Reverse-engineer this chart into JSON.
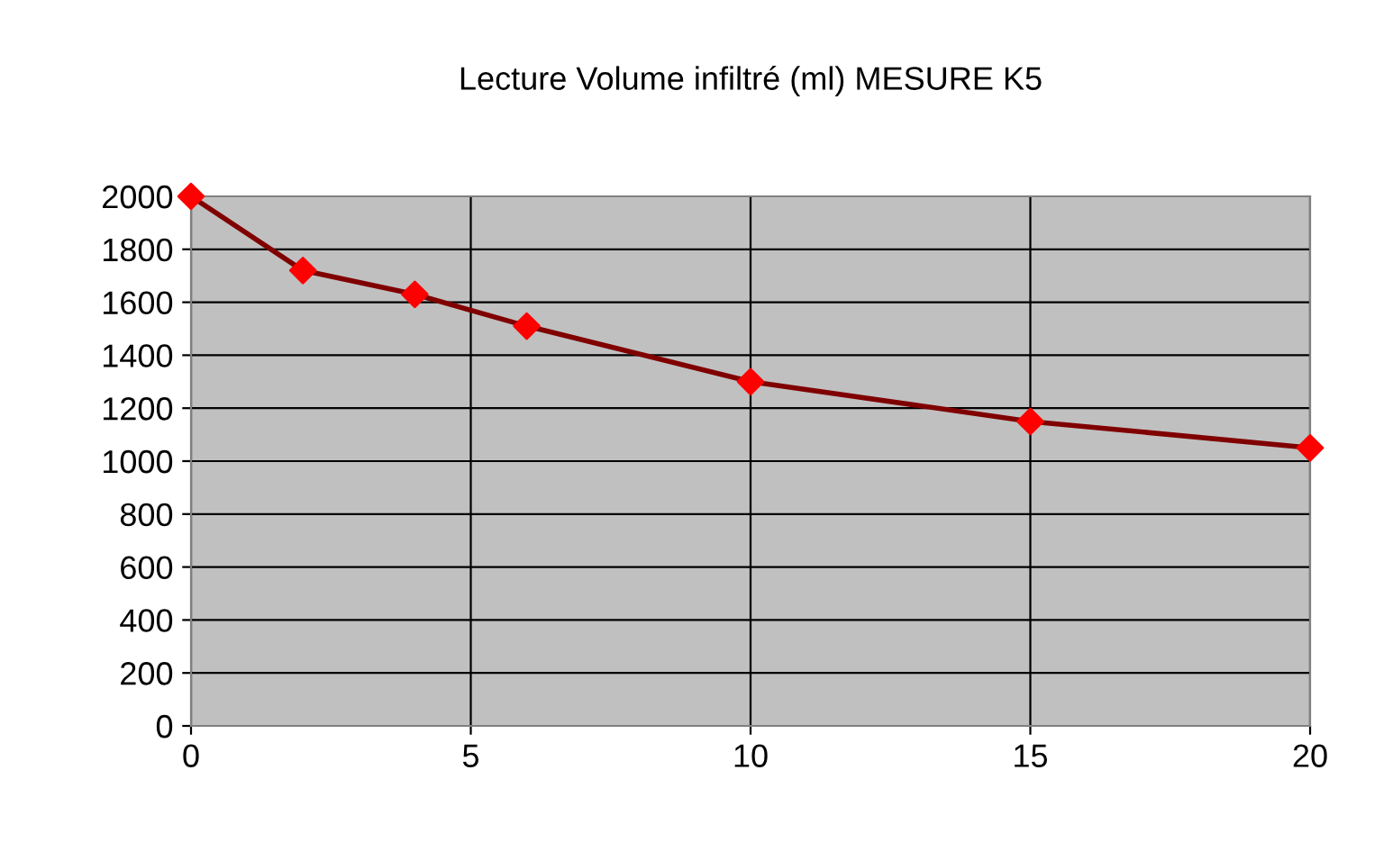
{
  "chart_data": {
    "type": "line",
    "title": "Lecture Volume infiltré (ml) MESURE K5",
    "x": [
      0,
      2,
      4,
      6,
      10,
      15,
      20
    ],
    "series": [
      {
        "color": "#800000",
        "colors": [
          "#ff0000",
          "#ff0000",
          "#ff0000",
          "#ff0000",
          "#ff0000",
          "#ff0000",
          "#ff0000"
        ],
        "values": [
          2000,
          1720,
          1630,
          1510,
          1300,
          1150,
          1050
        ]
      }
    ],
    "xlim": [
      0,
      20
    ],
    "xticks": [
      0,
      5,
      10,
      15,
      20
    ],
    "ylim": [
      0,
      2000
    ],
    "yticks": [
      0,
      200,
      400,
      600,
      800,
      1000,
      1200,
      1400,
      1600,
      1800,
      2000
    ],
    "grid": true,
    "marker": "diamond",
    "line_style": "solid",
    "legend": false
  }
}
